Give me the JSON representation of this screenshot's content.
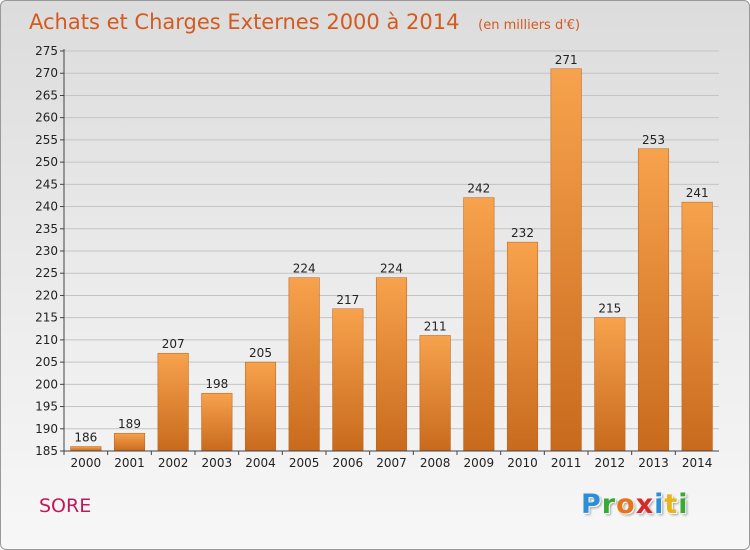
{
  "page": {
    "title": "Achats et Charges Externes 2000 à 2014",
    "subtitle": "(en milliers d'€)",
    "place": "SORE",
    "logo": [
      "P",
      "r",
      "o",
      "x",
      "i",
      "t",
      "i"
    ],
    "logo_colors": [
      "#2b8fd8",
      "#39a935",
      "#e8731a",
      "#d42a2a",
      "#2b8fd8",
      "#e8b41a",
      "#39a935"
    ]
  },
  "colors": {
    "bar_light": "#f7a24d",
    "bar_dark": "#c86a1d",
    "title": "#d45a1e",
    "place": "#c2185b"
  },
  "chart_data": {
    "type": "bar",
    "title": "Achats et Charges Externes 2000 à 2014",
    "subtitle": "(en milliers d'€)",
    "categories": [
      "2000",
      "2001",
      "2002",
      "2003",
      "2004",
      "2005",
      "2006",
      "2007",
      "2008",
      "2009",
      "2010",
      "2011",
      "2012",
      "2013",
      "2014"
    ],
    "values": [
      186,
      189,
      207,
      198,
      205,
      224,
      217,
      224,
      211,
      242,
      232,
      271,
      215,
      253,
      241
    ],
    "ylim": [
      185,
      275
    ],
    "yticks": [
      185,
      190,
      195,
      200,
      205,
      210,
      215,
      220,
      225,
      230,
      235,
      240,
      245,
      250,
      255,
      260,
      265,
      270,
      275
    ],
    "grid": true,
    "data_labels": true
  }
}
